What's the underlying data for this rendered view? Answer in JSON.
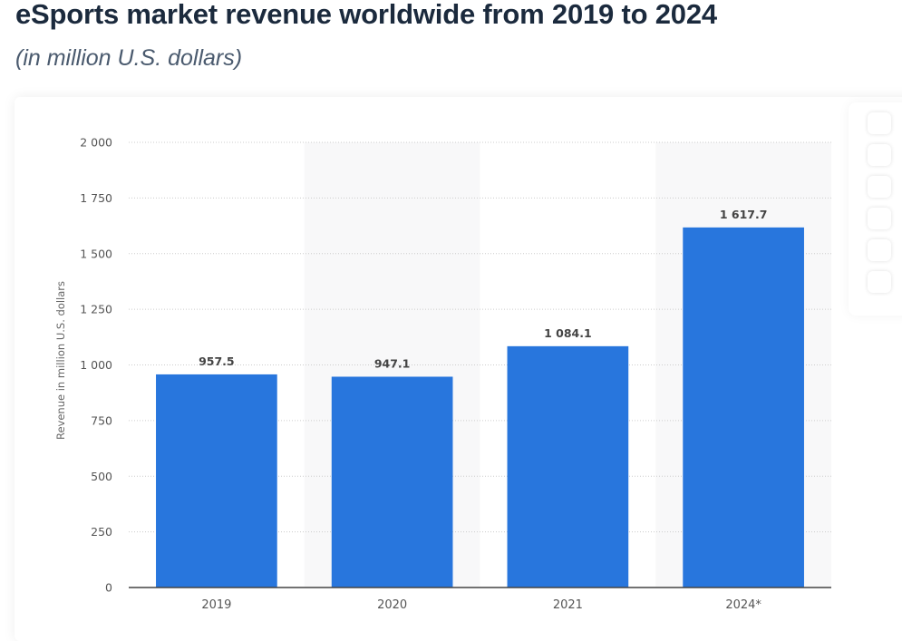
{
  "header": {
    "title": "eSports market revenue worldwide from 2019 to 2024",
    "subtitle": "(in million U.S. dollars)"
  },
  "toolbar": {
    "buttons": [
      "tool-button-1",
      "tool-button-2",
      "tool-button-3",
      "tool-button-4",
      "tool-button-5",
      "tool-button-6"
    ]
  },
  "colors": {
    "bar": "#2876dd",
    "band": "#f8f8f9",
    "grid": "#cccccc",
    "axis": "#444444"
  },
  "chart_data": {
    "type": "bar",
    "title": "eSports market revenue worldwide from 2019 to 2024",
    "subtitle": "(in million U.S. dollars)",
    "xlabel": "",
    "ylabel": "Revenue in million U.S. dollars",
    "categories": [
      "2019",
      "2020",
      "2021",
      "2024*"
    ],
    "values": [
      957.5,
      947.1,
      1084.1,
      1617.7
    ],
    "data_labels": [
      "957.5",
      "947.1",
      "1 084.1",
      "1 617.7"
    ],
    "ylim": [
      0,
      2000
    ],
    "yticks": [
      0,
      250,
      500,
      750,
      1000,
      1250,
      1500,
      1750,
      2000
    ],
    "ytick_labels": [
      "0",
      "250",
      "500",
      "750",
      "1 000",
      "1 250",
      "1 500",
      "1 750",
      "2 000"
    ],
    "grid": true,
    "legend": "none"
  }
}
